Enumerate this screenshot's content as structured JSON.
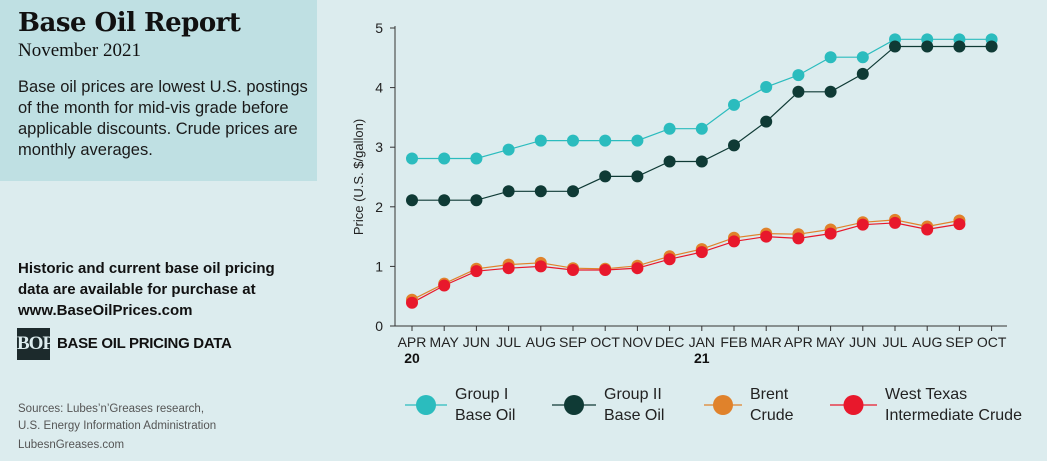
{
  "header": {
    "title": "Base Oil Report",
    "subtitle": "November 2021",
    "description": "Base oil prices are lowest U.S. postings of the month for mid-vis grade before applicable discounts. Crude prices are monthly averages."
  },
  "purchase": {
    "line1": "Historic and current base oil pricing",
    "line2": "data are available for purchase at",
    "url": "www.BaseOilPrices.com"
  },
  "brand": {
    "logo_text": "BOP",
    "label": "BASE OIL PRICING DATA"
  },
  "footer": {
    "sources_line1": "Sources: Lubes’n’Greases research,",
    "sources_line2": "U.S. Energy Information Administration",
    "site": "LubesnGreases.com"
  },
  "chart_data": {
    "type": "line",
    "title": "",
    "xlabel": "",
    "ylabel": "Price (U.S. $/gallon)",
    "ylim": [
      0,
      5
    ],
    "yticks": [
      0,
      1,
      2,
      3,
      4,
      5
    ],
    "grid": false,
    "legend_placement": "bottom",
    "categories": [
      "APR",
      "MAY",
      "JUN",
      "JUL",
      "AUG",
      "SEP",
      "OCT",
      "NOV",
      "DEC",
      "JAN",
      "FEB",
      "MAR",
      "APR",
      "MAY",
      "JUN",
      "JUL",
      "AUG",
      "SEP",
      "OCT"
    ],
    "year_labels": [
      {
        "index": 0,
        "label": "20"
      },
      {
        "index": 9,
        "label": "21"
      }
    ],
    "series": [
      {
        "name_line1": "Group I",
        "name_line2": "Base Oil",
        "color": "#2bbcbe",
        "line_color": "#2bbcbe",
        "values": [
          2.81,
          2.81,
          2.81,
          2.96,
          3.11,
          3.11,
          3.11,
          3.11,
          3.31,
          3.31,
          3.71,
          4.01,
          4.21,
          4.51,
          4.51,
          4.81,
          4.81,
          4.81,
          4.81
        ]
      },
      {
        "name_line1": "Group II",
        "name_line2": "Base Oil",
        "color": "#0f3a35",
        "line_color": "#0f3a35",
        "values": [
          2.11,
          2.11,
          2.11,
          2.26,
          2.26,
          2.26,
          2.51,
          2.51,
          2.76,
          2.76,
          3.03,
          3.43,
          3.93,
          3.93,
          4.23,
          4.69,
          4.69,
          4.69,
          4.69
        ]
      },
      {
        "name_line1": "Brent",
        "name_line2": "Crude",
        "color": "#e0822b",
        "line_color": "#e0822b",
        "values": [
          0.44,
          0.71,
          0.96,
          1.03,
          1.06,
          0.97,
          0.96,
          1.01,
          1.17,
          1.29,
          1.48,
          1.55,
          1.54,
          1.62,
          1.74,
          1.78,
          1.67,
          1.77,
          null
        ]
      },
      {
        "name_line1": "West Texas",
        "name_line2": "Intermediate Crude",
        "color": "#e8182c",
        "line_color": "#e8182c",
        "values": [
          0.39,
          0.68,
          0.92,
          0.97,
          1.0,
          0.94,
          0.94,
          0.97,
          1.12,
          1.24,
          1.42,
          1.5,
          1.47,
          1.55,
          1.7,
          1.73,
          1.62,
          1.71,
          null
        ]
      }
    ]
  }
}
